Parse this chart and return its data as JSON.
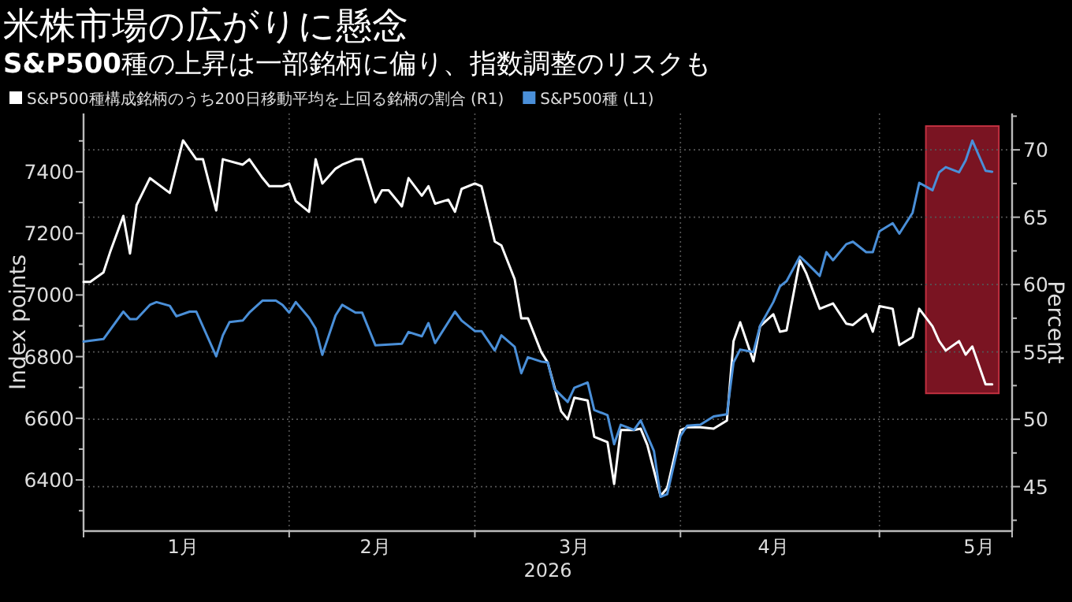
{
  "chart_data": {
    "type": "line",
    "title": "米株市場の広がりに懸念",
    "subtitle": "**S&P500**種の上昇は一部銘柄に偏り、指数調整のリスクも",
    "xlabel": "2026",
    "ylabel": "Index points",
    "y2label": "Percent",
    "legend": "top left",
    "grid": true,
    "xlim": [
      "2026-01-01",
      "2026-05-21"
    ],
    "xticks": [
      {
        "value": "2026-01-01",
        "label": null
      },
      {
        "value": "2026-02-01",
        "label": null
      },
      {
        "value": "2026-03-01",
        "label": null
      },
      {
        "value": "2026-04-01",
        "label": null
      },
      {
        "value": "2026-05-01",
        "label": null
      },
      {
        "value": "2026-05-21",
        "label": null
      },
      {
        "value": "2026-01-16",
        "label": "1月"
      },
      {
        "value": "2026-02-14",
        "label": "2月"
      },
      {
        "value": "2026-03-16",
        "label": "3月"
      },
      {
        "value": "2026-04-15",
        "label": "4月"
      },
      {
        "value": "2026-05-16",
        "label": "5月"
      }
    ],
    "ylim": [
      6234,
      7589
    ],
    "yticks": [
      6400,
      6600,
      6800,
      7000,
      7200,
      7400,
      {
        "value": 6300,
        "label": null
      },
      {
        "value": 6500,
        "label": null
      },
      {
        "value": 6700,
        "label": null
      },
      {
        "value": 6900,
        "label": null
      },
      {
        "value": 7100,
        "label": null
      },
      {
        "value": 7300,
        "label": null
      },
      {
        "value": 7500,
        "label": null
      }
    ],
    "y2lim": [
      41.7,
      72.7
    ],
    "y2ticks": [
      45,
      50,
      55,
      60,
      65,
      70,
      {
        "value": 42.5,
        "label": null
      },
      {
        "value": 47.5,
        "label": null
      },
      {
        "value": 52.5,
        "label": null
      },
      {
        "value": 57.5,
        "label": null
      },
      {
        "value": 62.5,
        "label": null
      },
      {
        "value": 67.5,
        "label": null
      },
      {
        "value": 72.5,
        "label": null
      }
    ],
    "bands": [
      {
        "axis": "x",
        "from": "2026-05-08",
        "to": "2026-05-19",
        "color": "#7a1422"
      }
    ],
    "series": [
      {
        "name": "S&P500種構成銘柄のうち200日移動平均を上回る銘柄の割合 (R1)",
        "color": "#ffffff",
        "axis": "y2",
        "x": [
          "2026-01-01",
          "2026-01-02",
          "2026-01-04",
          "2026-01-05",
          "2026-01-07",
          "2026-01-08",
          "2026-01-09",
          "2026-01-11",
          "2026-01-14",
          "2026-01-16",
          "2026-01-18",
          "2026-01-19",
          "2026-01-21",
          "2026-01-22",
          "2026-01-25",
          "2026-01-26",
          "2026-01-28",
          "2026-01-29",
          "2026-01-31",
          "2026-02-01",
          "2026-02-02",
          "2026-02-04",
          "2026-02-05",
          "2026-02-06",
          "2026-02-08",
          "2026-02-09",
          "2026-02-11",
          "2026-02-12",
          "2026-02-14",
          "2026-02-15",
          "2026-02-16",
          "2026-02-18",
          "2026-02-19",
          "2026-02-21",
          "2026-02-22",
          "2026-02-23",
          "2026-02-25",
          "2026-02-26",
          "2026-02-27",
          "2026-03-01",
          "2026-03-02",
          "2026-03-04",
          "2026-03-05",
          "2026-03-07",
          "2026-03-08",
          "2026-03-09",
          "2026-03-11",
          "2026-03-12",
          "2026-03-14",
          "2026-03-15",
          "2026-03-16",
          "2026-03-18",
          "2026-03-19",
          "2026-03-21",
          "2026-03-22",
          "2026-03-23",
          "2026-03-25",
          "2026-03-26",
          "2026-03-27",
          "2026-03-29",
          "2026-03-30",
          "2026-04-01",
          "2026-04-02",
          "2026-04-04",
          "2026-04-06",
          "2026-04-08",
          "2026-04-09",
          "2026-04-10",
          "2026-04-12",
          "2026-04-13",
          "2026-04-15",
          "2026-04-16",
          "2026-04-17",
          "2026-04-19",
          "2026-04-20",
          "2026-04-22",
          "2026-04-24",
          "2026-04-26",
          "2026-04-27",
          "2026-04-29",
          "2026-04-30",
          "2026-05-01",
          "2026-05-03",
          "2026-05-04",
          "2026-05-06",
          "2026-05-07",
          "2026-05-09",
          "2026-05-10",
          "2026-05-11",
          "2026-05-13",
          "2026-05-14",
          "2026-05-15",
          "2026-05-17",
          "2026-05-18"
        ],
        "values": [
          60.2,
          60.2,
          60.9,
          62.4,
          65.1,
          62.3,
          65.9,
          67.9,
          66.8,
          70.7,
          69.3,
          69.3,
          65.5,
          69.3,
          68.9,
          69.3,
          67.9,
          67.3,
          67.3,
          67.5,
          66.2,
          65.4,
          69.3,
          67.5,
          68.6,
          68.9,
          69.3,
          69.3,
          66.1,
          67.0,
          67.0,
          65.8,
          67.9,
          66.6,
          67.3,
          66.0,
          66.3,
          65.4,
          67.1,
          67.5,
          67.3,
          63.2,
          62.9,
          60.4,
          57.5,
          57.5,
          55.0,
          54.2,
          50.6,
          50.0,
          51.6,
          51.4,
          48.7,
          48.3,
          45.2,
          49.2,
          49.2,
          49.3,
          48.1,
          44.3,
          44.9,
          49.2,
          49.4,
          49.4,
          49.3,
          49.9,
          55.8,
          57.2,
          54.3,
          56.9,
          57.8,
          56.5,
          56.6,
          61.8,
          60.8,
          58.2,
          58.6,
          57.1,
          57.0,
          57.8,
          56.5,
          58.4,
          58.2,
          55.5,
          56.1,
          58.2,
          56.9,
          55.8,
          55.1,
          55.8,
          54.8,
          55.4,
          52.6,
          52.6
        ]
      },
      {
        "name": "S&P500種 (L1)",
        "color": "#4a8fd8",
        "x": [
          "2026-01-01",
          "2026-01-04",
          "2026-01-07",
          "2026-01-08",
          "2026-01-09",
          "2026-01-11",
          "2026-01-12",
          "2026-01-14",
          "2026-01-15",
          "2026-01-17",
          "2026-01-18",
          "2026-01-21",
          "2026-01-22",
          "2026-01-23",
          "2026-01-25",
          "2026-01-26",
          "2026-01-28",
          "2026-01-30",
          "2026-01-31",
          "2026-02-01",
          "2026-02-02",
          "2026-02-04",
          "2026-02-05",
          "2026-02-06",
          "2026-02-08",
          "2026-02-09",
          "2026-02-11",
          "2026-02-12",
          "2026-02-14",
          "2026-02-18",
          "2026-02-19",
          "2026-02-21",
          "2026-02-22",
          "2026-02-23",
          "2026-02-26",
          "2026-02-27",
          "2026-03-01",
          "2026-03-02",
          "2026-03-04",
          "2026-03-05",
          "2026-03-07",
          "2026-03-08",
          "2026-03-09",
          "2026-03-11",
          "2026-03-12",
          "2026-03-13",
          "2026-03-15",
          "2026-03-16",
          "2026-03-18",
          "2026-03-19",
          "2026-03-21",
          "2026-03-22",
          "2026-03-23",
          "2026-03-25",
          "2026-03-26",
          "2026-03-28",
          "2026-03-29",
          "2026-03-30",
          "2026-04-01",
          "2026-04-02",
          "2026-04-04",
          "2026-04-06",
          "2026-04-08",
          "2026-04-09",
          "2026-04-10",
          "2026-04-12",
          "2026-04-13",
          "2026-04-15",
          "2026-04-16",
          "2026-04-17",
          "2026-04-19",
          "2026-04-20",
          "2026-04-22",
          "2026-04-23",
          "2026-04-24",
          "2026-04-26",
          "2026-04-27",
          "2026-04-29",
          "2026-04-30",
          "2026-05-01",
          "2026-05-03",
          "2026-05-04",
          "2026-05-06",
          "2026-05-07",
          "2026-05-09",
          "2026-05-10",
          "2026-05-11",
          "2026-05-13",
          "2026-05-14",
          "2026-05-15",
          "2026-05-17",
          "2026-05-18"
        ],
        "values": [
          6849,
          6857,
          6946,
          6922,
          6922,
          6968,
          6977,
          6965,
          6931,
          6946,
          6946,
          6801,
          6869,
          6912,
          6917,
          6943,
          6982,
          6982,
          6968,
          6943,
          6977,
          6926,
          6891,
          6806,
          6934,
          6968,
          6943,
          6943,
          6837,
          6842,
          6880,
          6866,
          6909,
          6844,
          6946,
          6917,
          6883,
          6883,
          6820,
          6869,
          6832,
          6746,
          6798,
          6784,
          6781,
          6695,
          6653,
          6699,
          6716,
          6627,
          6610,
          6516,
          6579,
          6562,
          6593,
          6494,
          6345,
          6354,
          6542,
          6576,
          6579,
          6606,
          6613,
          6781,
          6823,
          6815,
          6900,
          6977,
          7028,
          7045,
          7125,
          7105,
          7062,
          7139,
          7113,
          7165,
          7173,
          7139,
          7139,
          7207,
          7233,
          7199,
          7267,
          7364,
          7340,
          7398,
          7415,
          7398,
          7437,
          7501,
          7403,
          7400
        ]
      }
    ]
  }
}
